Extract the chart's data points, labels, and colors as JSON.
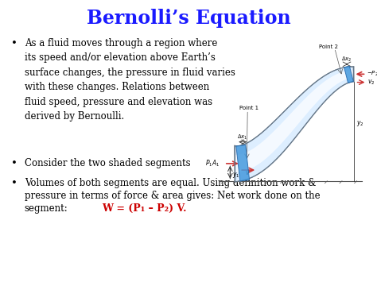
{
  "title": "Bernolli’s Equation",
  "title_color": "#1a1aff",
  "title_fontsize": 17,
  "background_color": "#ffffff",
  "bullet1": "As a fluid moves through a region where\nits speed and/or elevation above Earth’s\nsurface changes, the pressure in fluid varies\nwith these changes. Relations between\nfluid speed, pressure and elevation was\nderived by Bernoulli.",
  "bullet2": "Consider the two shaded segments",
  "bullet3_line1": "Volumes of both segments are equal. Using definition work &",
  "bullet3_line2": "pressure in terms of force & area gives: Net work done on the",
  "bullet3_line3": "segment:",
  "bullet3_formula": "W = (P₁ – P₂) V.",
  "text_color": "#000000",
  "formula_color": "#cc0000",
  "body_fontsize": 8.5,
  "formula_fontsize": 9
}
